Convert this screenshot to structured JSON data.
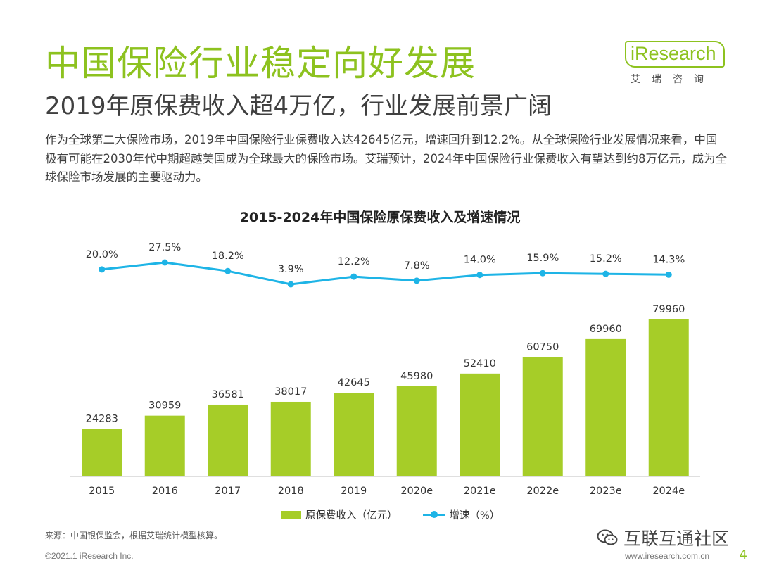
{
  "header": {
    "title": "中国保险行业稳定向好发展",
    "subtitle": "2019年原保费收入超4万亿，行业发展前景广阔",
    "paragraph": "作为全球第二大保险市场，2019年中国保险行业保费收入达42645亿元，增速回升到12.2%。从全球保险行业发展情况来看，中国极有可能在2030年代中期超越美国成为全球最大的保险市场。艾瑞预计，2024年中国保险行业保费收入有望达到约8万亿元，成为全球保险市场发展的主要驱动力。"
  },
  "logo": {
    "name": "iResearch",
    "sub": "艾瑞咨询"
  },
  "chart_data": {
    "type": "bar",
    "title": "2015-2024年中国保险原保费收入及增速情况",
    "categories": [
      "2015",
      "2016",
      "2017",
      "2018",
      "2019",
      "2020e",
      "2021e",
      "2022e",
      "2023e",
      "2024e"
    ],
    "series": [
      {
        "name": "原保费收入（亿元）",
        "type": "bar",
        "color": "#a6cd28",
        "values": [
          24283,
          30959,
          36581,
          38017,
          42645,
          45980,
          52410,
          60750,
          69960,
          79960
        ]
      },
      {
        "name": "增速（%）",
        "type": "line",
        "color": "#1eb4e6",
        "values": [
          20.0,
          27.5,
          18.2,
          3.9,
          12.2,
          7.8,
          14.0,
          15.9,
          15.2,
          14.3
        ],
        "labels": [
          "20.0%",
          "27.5%",
          "18.2%",
          "3.9%",
          "12.2%",
          "7.8%",
          "14.0%",
          "15.9%",
          "15.2%",
          "14.3%"
        ]
      }
    ],
    "legend_position": "bottom",
    "grid": false
  },
  "footer": {
    "source": "来源：中国银保监会，根据艾瑞统计模型核算。",
    "copyright": "©2021.1 iResearch Inc.",
    "site": "www.iresearch.com.cn",
    "page": "4",
    "watermark": "互联互通社区"
  }
}
